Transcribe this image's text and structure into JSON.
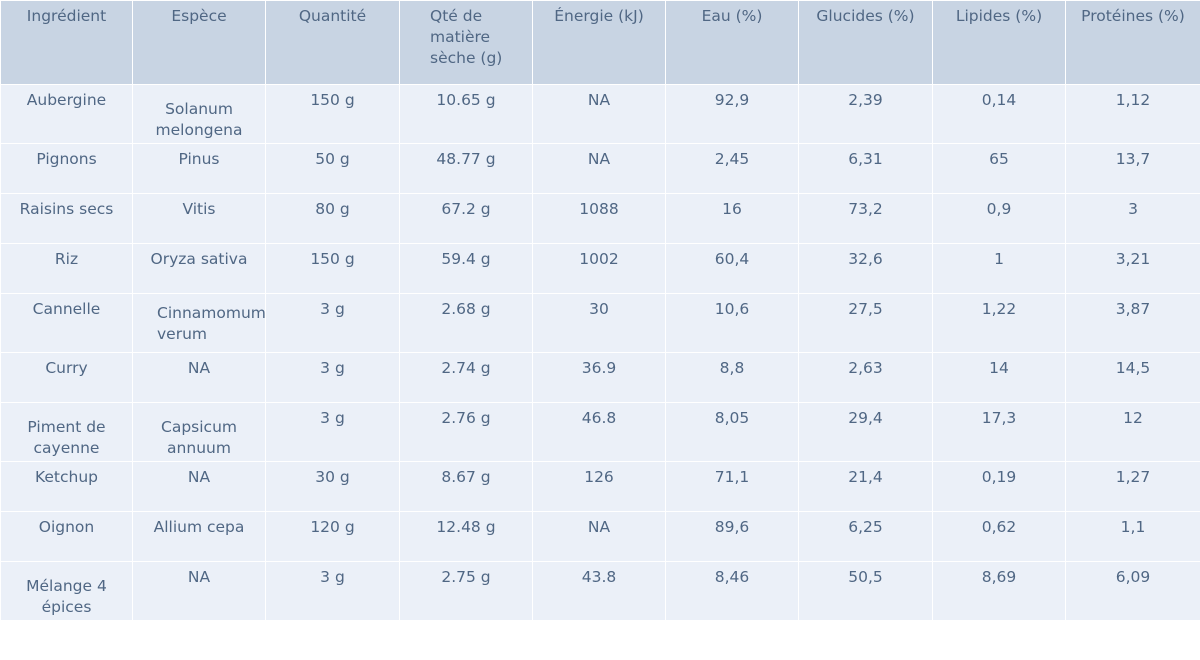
{
  "chart_data": {
    "type": "table",
    "columns": [
      "Ingrédient",
      "Espèce",
      "Quantité",
      "Qté de matière sèche (g)",
      "Énergie (kJ)",
      "Eau (%)",
      "Glucides (%)",
      "Lipides (%)",
      "Protéines (%)"
    ],
    "rows": [
      [
        "Aubergine",
        "Solanum melongena",
        "150 g",
        "10.65 g",
        "NA",
        "92,9",
        "2,39",
        "0,14",
        "1,12"
      ],
      [
        "Pignons",
        "Pinus",
        "50 g",
        "48.77 g",
        "NA",
        "2,45",
        "6,31",
        "65",
        "13,7"
      ],
      [
        "Raisins secs",
        "Vitis",
        "80 g",
        "67.2 g",
        "1088",
        "16",
        "73,2",
        "0,9",
        "3"
      ],
      [
        "Riz",
        "Oryza sativa",
        "150 g",
        "59.4 g",
        "1002",
        "60,4",
        "32,6",
        "1",
        "3,21"
      ],
      [
        "Cannelle",
        "Cinnamomum verum",
        "3 g",
        "2.68 g",
        "30",
        "10,6",
        "27,5",
        "1,22",
        "3,87"
      ],
      [
        "Curry",
        "NA",
        "3 g",
        "2.74 g",
        "36.9",
        "8,8",
        "2,63",
        "14",
        "14,5"
      ],
      [
        "Piment de cayenne",
        "Capsicum annuum",
        "3 g",
        "2.76 g",
        "46.8",
        "8,05",
        "29,4",
        "17,3",
        "12"
      ],
      [
        "Ketchup",
        "NA",
        "30 g",
        "8.67 g",
        "126",
        "71,1",
        "21,4",
        "0,19",
        "1,27"
      ],
      [
        "Oignon",
        "Allium cepa",
        "120 g",
        "12.48 g",
        "NA",
        "89,6",
        "6,25",
        "0,62",
        "1,1"
      ],
      [
        "Mélange 4 épices",
        "NA",
        "3 g",
        "2.75 g",
        "43.8",
        "8,46",
        "50,5",
        "8,69",
        "6,09"
      ]
    ],
    "colors": {
      "header_fill": "#c8d4e3",
      "cell_fill": "#ebf0f8",
      "text": "#506784",
      "line": "#ffffff"
    }
  }
}
